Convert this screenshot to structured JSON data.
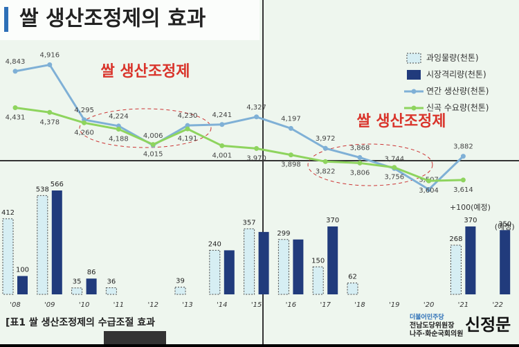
{
  "chart_data": {
    "type": "combo",
    "title": "쌀 생산조정제의 효과",
    "caption": "[표1 쌀 생산조정제의 수급조절 효과",
    "categories": [
      "'08",
      "'09",
      "'10",
      "'11",
      "'12",
      "'13",
      "'14",
      "'15",
      "'16",
      "'17",
      "'18",
      "'19",
      "'20",
      "'21",
      "'22"
    ],
    "series": [
      {
        "name": "과잉물량(천톤)",
        "type": "bar",
        "color": "#d6eef3",
        "values": [
          412,
          538,
          35,
          36,
          null,
          39,
          240,
          357,
          299,
          150,
          62,
          null,
          null,
          268,
          null
        ]
      },
      {
        "name": "시장격리량(천톤)",
        "type": "bar",
        "color": "#213b7c",
        "values": [
          100,
          566,
          86,
          null,
          null,
          null,
          240,
          340,
          299,
          370,
          null,
          null,
          null,
          370,
          350
        ],
        "value_labels": [
          "100",
          "566",
          "86",
          null,
          null,
          null,
          null,
          null,
          null,
          "370",
          null,
          null,
          null,
          "370",
          "350"
        ]
      },
      {
        "name": "연간 생산량(천톤)",
        "type": "line",
        "color": "#7fb0d6",
        "values": [
          4843,
          4916,
          4295,
          4224,
          4006,
          4230,
          4241,
          4327,
          4197,
          3972,
          3868,
          3744,
          3507,
          3882,
          null
        ],
        "value_labels": [
          "4,843",
          "4,916",
          "4,295",
          "4,224",
          "4,006",
          "4,230",
          "4,241",
          "4,327",
          "4,197",
          "3,972",
          "3,868",
          "3,744",
          "3,507",
          "3,882",
          null
        ]
      },
      {
        "name": "신곡 수요량(천톤)",
        "type": "line",
        "color": "#8ed45e",
        "values": [
          4431,
          4378,
          4260,
          4188,
          4015,
          4191,
          4001,
          3970,
          3898,
          3822,
          3806,
          3756,
          3604,
          3614,
          null
        ],
        "value_labels": [
          "4,431",
          "4,378",
          "4,260",
          "4,188",
          "4,015",
          "4,191",
          "4,001",
          "3,970",
          "3,898",
          "3,822",
          "3,806",
          "3,756",
          "3,604",
          "3,614",
          null
        ]
      }
    ],
    "ylim": [
      0,
      600
    ],
    "y2lim": [
      3300,
      5100
    ],
    "annotations": [
      {
        "text": "+100(예정)",
        "category": "'21"
      },
      {
        "text": "(예정)",
        "category": "'22"
      },
      {
        "text": "쌀 생산조정제",
        "color": "#d9342b"
      },
      {
        "text": "쌀 생산조정제",
        "color": "#d9342b"
      }
    ],
    "signature": {
      "party": "더불어민주당",
      "role": "전남도당위원장",
      "office": "나주·화순국회의원",
      "name": "신정문"
    }
  }
}
